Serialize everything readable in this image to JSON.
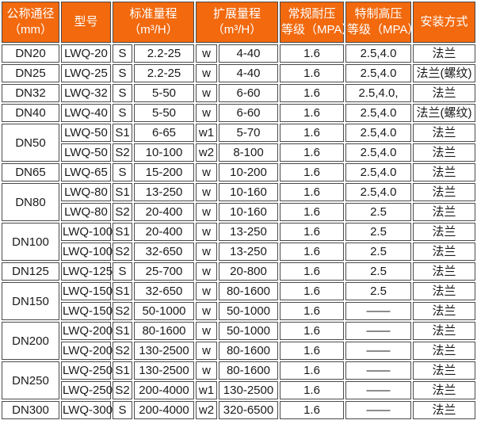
{
  "colors": {
    "header_bg": "#f2690e",
    "header_text": "#ffffff",
    "border": "#4a4a4a",
    "cell_bg": "#ffffff",
    "cell_text": "#1a1a1a"
  },
  "table": {
    "headers": {
      "dn": {
        "line1": "公称通径",
        "line2": "（mm）"
      },
      "model": {
        "line1": "型号",
        "line2": ""
      },
      "std": {
        "line1": "标准量程",
        "line2": "（m³/H）"
      },
      "ext": {
        "line1": "扩展量程",
        "line2": "（m³/H）"
      },
      "np": {
        "line1": "常规耐压",
        "line2": "等级（MPA）"
      },
      "hp": {
        "line1": "特制高压",
        "line2": "等级（MPA）"
      },
      "install": {
        "line1": "安装方式",
        "line2": ""
      }
    },
    "rows": [
      {
        "dn": "DN20",
        "model": "LWQ-20",
        "s": "S",
        "std": "2.2-25",
        "w": "w",
        "ext": "4-40",
        "np": "1.6",
        "hp": "2.5,4.0",
        "inst": "法兰"
      },
      {
        "dn": "DN25",
        "model": "LWQ-25",
        "s": "S",
        "std": "2.2-25",
        "w": "w",
        "ext": "4-40",
        "np": "1.6",
        "hp": "2.5,4.0",
        "inst": "法兰(螺纹)"
      },
      {
        "dn": "DN32",
        "model": "LWQ-32",
        "s": "S",
        "std": "5-50",
        "w": "w",
        "ext": "6-60",
        "np": "1.6",
        "hp": "2.5,4.0,",
        "inst": "法兰"
      },
      {
        "dn": "DN40",
        "model": "LWQ-40",
        "s": "S",
        "std": "5-50",
        "w": "w",
        "ext": "6-60",
        "np": "1.6",
        "hp": "2.5,4.0",
        "inst": "法兰(螺纹)"
      },
      {
        "dn": "DN50",
        "model": "LWQ-50",
        "s": "S1",
        "std": "6-65",
        "w": "w1",
        "ext": "5-70",
        "np": "1.6",
        "hp": "2.5,4.0",
        "inst": "法兰"
      },
      {
        "model": "LWQ-50",
        "s": "S2",
        "std": "10-100",
        "w": "w2",
        "ext": "8-100",
        "np": "1.6",
        "hp": "2.5,4.0",
        "inst": "法兰"
      },
      {
        "dn": "DN65",
        "model": "LWQ-65",
        "s": "S",
        "std": "15-200",
        "w": "w",
        "ext": "10-200",
        "np": "1.6",
        "hp": "2.5,4.0",
        "inst": "法兰"
      },
      {
        "dn": "DN80",
        "model": "LWQ-80",
        "s": "S1",
        "std": "13-250",
        "w": "w",
        "ext": "10-160",
        "np": "1.6",
        "hp": "2.5,4.0",
        "inst": "法兰"
      },
      {
        "model": "LWQ-80",
        "s": "S2",
        "std": "20-400",
        "w": "w",
        "ext": "10-160",
        "np": "1.6",
        "hp": "2.5",
        "inst": "法兰"
      },
      {
        "dn": "DN100",
        "model": "LWQ-100",
        "s": "S1",
        "std": "20-400",
        "w": "w",
        "ext": "13-250",
        "np": "1.6",
        "hp": "2.5",
        "inst": "法兰"
      },
      {
        "model": "LWQ-100",
        "s": "S2",
        "std": "32-650",
        "w": "w",
        "ext": "13-250",
        "np": "1.6",
        "hp": "2.5",
        "inst": "法兰"
      },
      {
        "dn": "DN125",
        "model": "LWQ-125",
        "s": "S",
        "std": "25-700",
        "w": "w",
        "ext": "20-800",
        "np": "1.6",
        "hp": "2.5",
        "inst": "法兰"
      },
      {
        "dn": "DN150",
        "model": "LWQ-150",
        "s": "S1",
        "std": "32-650",
        "w": "w",
        "ext": "80-1600",
        "np": "1.6",
        "hp": "2.5",
        "inst": "法兰"
      },
      {
        "model": "LWQ-150",
        "s": "S2",
        "std": "50-1000",
        "w": "w",
        "ext": "50-1000",
        "np": "1.6",
        "hp": "——",
        "inst": "法兰"
      },
      {
        "dn": "DN200",
        "model": "LWQ-200",
        "s": "S1",
        "std": "80-1600",
        "w": "w",
        "ext": "50-1000",
        "np": "1.6",
        "hp": "——",
        "inst": "法兰"
      },
      {
        "model": "LWQ-200",
        "s": "S2",
        "std": "130-2500",
        "w": "w",
        "ext": "80-1600",
        "np": "1.6",
        "hp": "——",
        "inst": "法兰"
      },
      {
        "dn": "DN250",
        "model": "LWQ-250",
        "s": "S1",
        "std": "130-2500",
        "w": "w",
        "ext": "80-1600",
        "np": "1.6",
        "hp": "——",
        "inst": "法兰"
      },
      {
        "model": "LWQ-250",
        "s": "S2",
        "std": "200-4000",
        "w": "w1",
        "ext": "130-2500",
        "np": "1.6",
        "hp": "——",
        "inst": "法兰"
      },
      {
        "dn": "DN300",
        "model": "LWQ-300",
        "s": "S",
        "std": "200-4000",
        "w": "w2",
        "ext": "320-6500",
        "np": "1.6",
        "hp": "——",
        "inst": "法兰"
      }
    ]
  }
}
